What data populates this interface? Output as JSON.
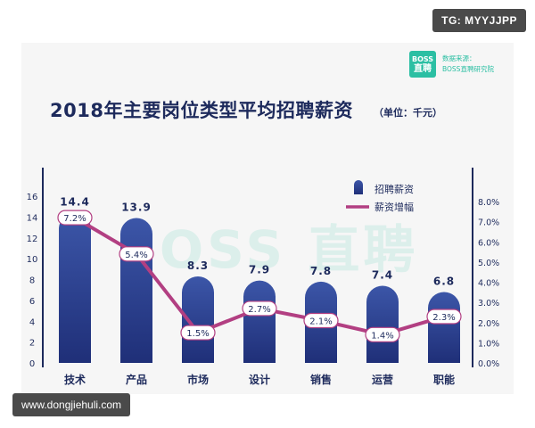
{
  "watermark_top": "TG: MYYJJPP",
  "watermark_bottom": "www.dongjiehuli.com",
  "logo": {
    "line1": "BOSS",
    "line2": "直聘"
  },
  "source": {
    "label": "数据来源：",
    "name": "BOSS直聘研究院"
  },
  "bg_watermark": "BOSS 直聘",
  "colors": {
    "bar": "#1f2f78",
    "bar_top": "#3c56a8",
    "line": "#b23f82",
    "label_border": "#b23f82",
    "text": "#1d2a5c"
  },
  "chart_data": {
    "type": "bar",
    "title": "2018年主要岗位类型平均招聘薪资",
    "unit": "（单位：千元）",
    "categories": [
      "技术",
      "产品",
      "市场",
      "设计",
      "销售",
      "运营",
      "职能"
    ],
    "series": [
      {
        "name": "招聘薪资",
        "type": "bar",
        "axis": "left",
        "values": [
          14.4,
          13.9,
          8.3,
          7.9,
          7.8,
          7.4,
          6.8
        ],
        "labels": [
          "14.4",
          "13.9",
          "8.3",
          "7.9",
          "7.8",
          "7.4",
          "6.8"
        ]
      },
      {
        "name": "薪资增幅",
        "type": "line",
        "axis": "right",
        "values": [
          7.2,
          5.4,
          1.5,
          2.7,
          2.1,
          1.4,
          2.3
        ],
        "labels": [
          "7.2%",
          "5.4%",
          "1.5%",
          "2.7%",
          "2.1%",
          "1.4%",
          "2.3%"
        ]
      }
    ],
    "left_axis": {
      "min": 0,
      "max": 16,
      "ticks": [
        "0",
        "2",
        "4",
        "6",
        "8",
        "10",
        "12",
        "14",
        "16"
      ]
    },
    "right_axis": {
      "min": 0,
      "max": 8,
      "ticks": [
        "0.0%",
        "1.0%",
        "2.0%",
        "3.0%",
        "4.0%",
        "5.0%",
        "6.0%",
        "7.0%",
        "8.0%"
      ]
    },
    "legend": [
      "招聘薪资",
      "薪资增幅"
    ],
    "legend_position": "top-right"
  }
}
